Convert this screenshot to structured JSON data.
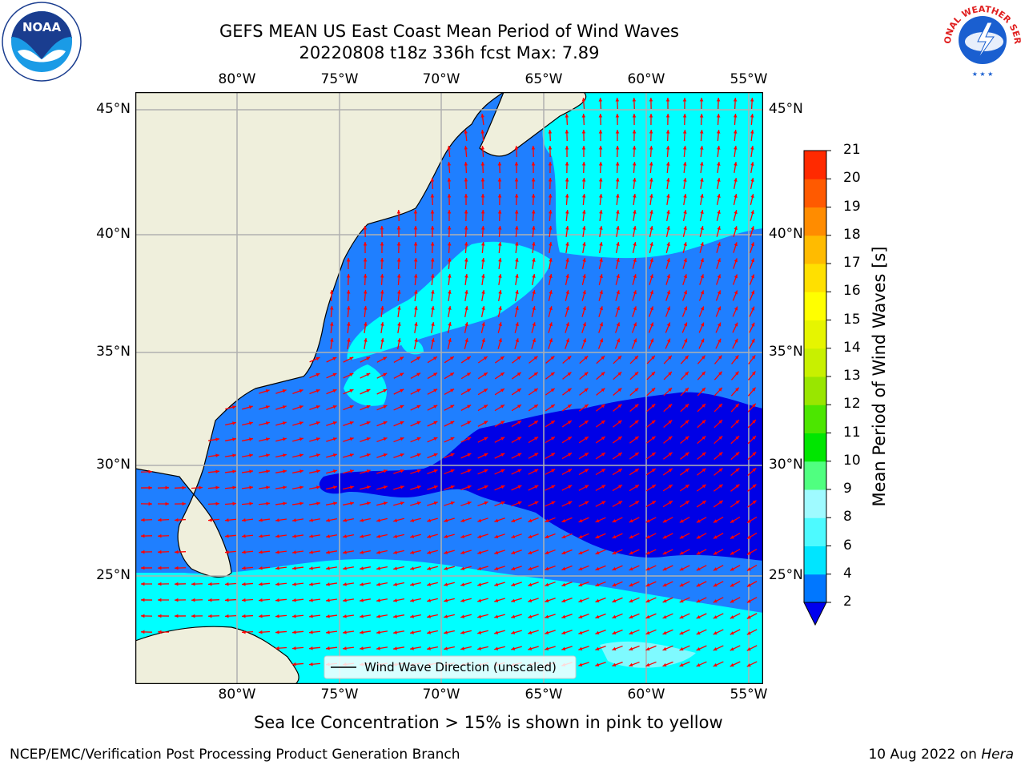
{
  "title": {
    "line1": "GEFS MEAN US East Coast Mean Period of Wind Waves",
    "line2": "20220808 t18z 336h fcst   Max: 7.89"
  },
  "map": {
    "lon_ticks": [
      "80°W",
      "75°W",
      "70°W",
      "65°W",
      "60°W",
      "55°W"
    ],
    "lat_ticks": [
      "45°N",
      "40°N",
      "35°N",
      "30°N",
      "25°N"
    ],
    "legend_label": "Wind Wave Direction (unscaled)",
    "colors": {
      "land": "#efefdc",
      "coast": "#000000",
      "ocean_blue": "#1f7fff",
      "deep_blue": "#0000e6",
      "cyan": "#00ffff",
      "light_cyan": "#7ffaff",
      "arrow": "#ff0000",
      "grid": "#b0b0b0"
    }
  },
  "colorbar": {
    "label": "Mean Period of Wind Waves [s]",
    "ticks": [
      "2",
      "4",
      "6",
      "8",
      "9",
      "10",
      "11",
      "12",
      "13",
      "14",
      "15",
      "16",
      "17",
      "18",
      "19",
      "20",
      "21"
    ],
    "colors": [
      "#0077ff",
      "#00e5ff",
      "#4dfaff",
      "#9ffaff",
      "#50ff80",
      "#00e600",
      "#4ce600",
      "#99e600",
      "#c8f000",
      "#e6f500",
      "#ffff00",
      "#ffe000",
      "#ffbb00",
      "#ff8c00",
      "#ff5a00",
      "#ff2a00",
      "#ff0000"
    ],
    "extend_color": "#0000ee"
  },
  "ice_note": "Sea Ice Concentration > 15% is shown in pink to yellow",
  "footer": {
    "left": "NCEP/EMC/Verification Post Processing Product Generation Branch",
    "date": "10 Aug 2022 on ",
    "host": "Hera"
  },
  "logos": {
    "noaa": {
      "icon": "noaa-logo",
      "text": "NOAA"
    },
    "nws": {
      "icon": "nws-logo",
      "text": "NATIONAL WEATHER SERVICE"
    }
  }
}
